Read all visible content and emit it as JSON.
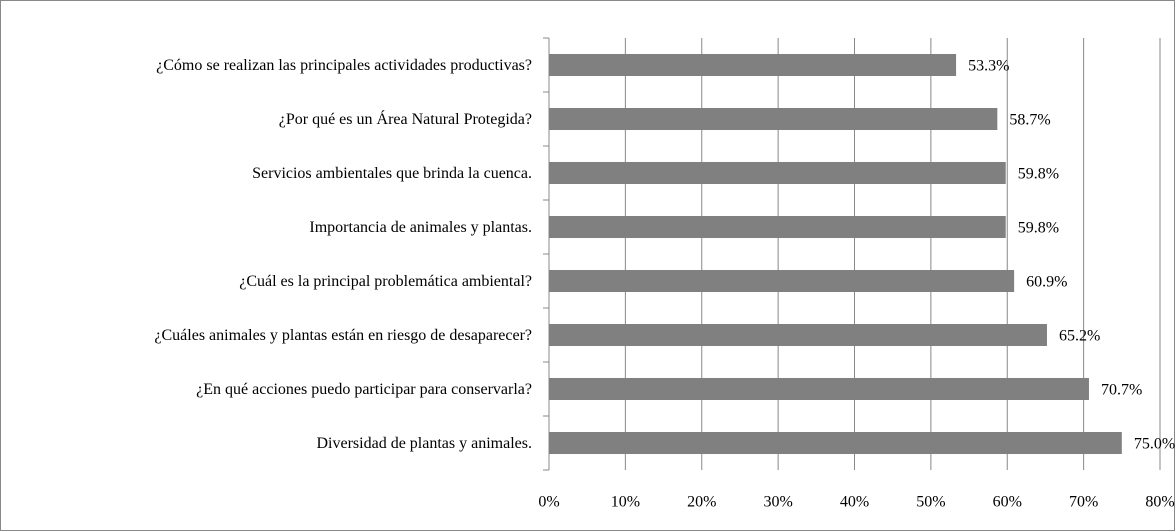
{
  "chart_data": {
    "type": "bar",
    "orientation": "horizontal",
    "categories": [
      "¿Cómo se realizan las principales actividades productivas?",
      "¿Por qué es un Área Natural Protegida?",
      "Servicios ambientales que brinda la cuenca.",
      "Importancia de animales y plantas.",
      "¿Cuál es la principal problemática ambiental?",
      "¿Cuáles animales y plantas están en riesgo de desaparecer?",
      "¿En qué acciones puedo participar para conservarla?",
      "Diversidad de plantas y animales."
    ],
    "values": [
      53.3,
      58.7,
      59.8,
      59.8,
      60.9,
      65.2,
      70.7,
      75.0
    ],
    "value_labels": [
      "53.3%",
      "58.7%",
      "59.8%",
      "59.8%",
      "60.9%",
      "65.2%",
      "70.7%",
      "75.0%"
    ],
    "color": "#808080",
    "xlim": [
      0,
      80
    ],
    "xticks": [
      {
        "value": 0,
        "label": "0%"
      },
      {
        "value": 10,
        "label": "10%"
      },
      {
        "value": 20,
        "label": "20%"
      },
      {
        "value": 30,
        "label": "30%"
      },
      {
        "value": 40,
        "label": "40%"
      },
      {
        "value": 50,
        "label": "50%"
      },
      {
        "value": 60,
        "label": "60%"
      },
      {
        "value": 70,
        "label": "70%"
      },
      {
        "value": 80,
        "label": "80%"
      }
    ],
    "grid": true
  }
}
